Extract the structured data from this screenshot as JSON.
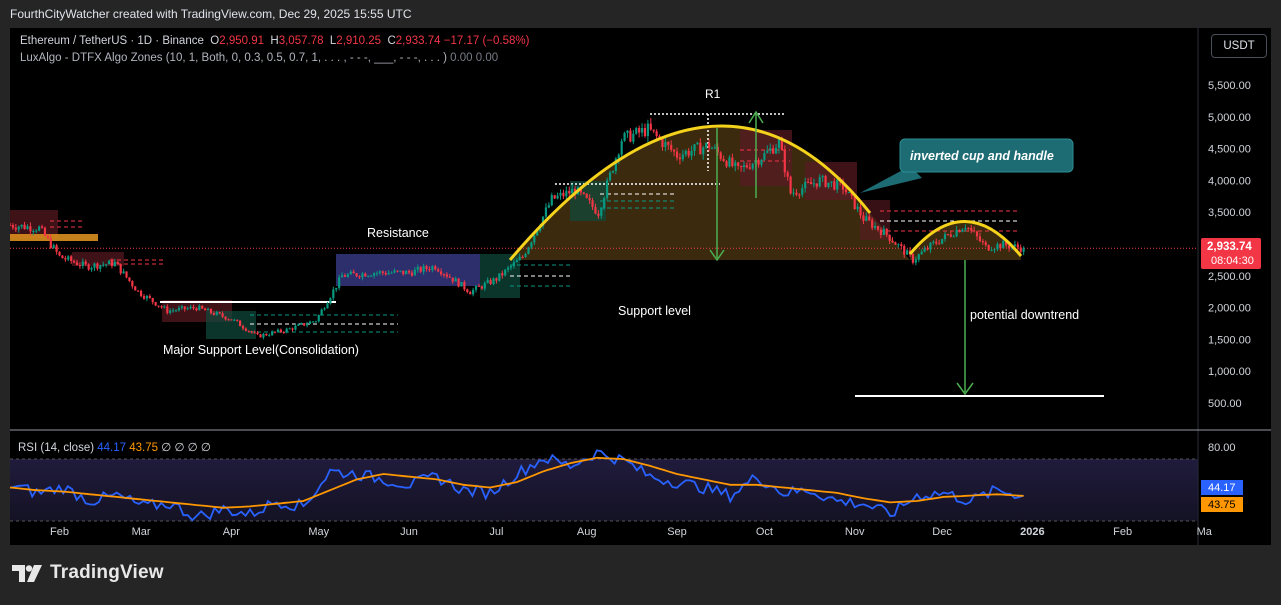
{
  "attribution": "FourthCityWatcher created with TradingView.com, Dec 29, 2025 15:55 UTC",
  "legend": {
    "symbol": "Ethereum / TetherUS · 1D · Binance",
    "o_label": "O",
    "o_value": "2,950.91",
    "h_label": "H",
    "h_value": "3,057.78",
    "l_label": "L",
    "l_value": "2,910.25",
    "c_label": "C",
    "c_value": "2,933.74",
    "change": "−17.17 (−0.58%)",
    "indicator": "LuxAlgo - DTFX Algo Zones (10, 1, Both, 0, 0.3, 0.5, 0.7, 1, . . . , - - -, ___, - - -, . . . )",
    "indicator_values": "0.00  0.00"
  },
  "currency": "USDT",
  "price_badge": {
    "price": "2,933.74",
    "countdown": "08:04:30"
  },
  "rsi_legend": {
    "label": "RSI (14, close)",
    "rsi": "44.17",
    "ma": "43.75",
    "extra": "∅ ∅ ∅ ∅"
  },
  "rsi_badges": {
    "rsi": "44.17",
    "ma": "43.75"
  },
  "logo": {
    "text": "TradingView",
    "icon": "tradingview-logo-icon"
  },
  "colors": {
    "up": "#089981",
    "down": "#f23645",
    "arc": "#f5d21c",
    "rsi_line": "#2962ff",
    "rsi_ma": "#ff9800",
    "callout": "#1d6b73",
    "arrow": "#4caf50",
    "zone_fill": "#7a5a20",
    "resistance_zone": "#3b3f8f"
  },
  "annotations": {
    "r1": "R1",
    "resistance": "Resistance",
    "support": "Support level",
    "major_support": "Major Support Level(Consolidation)",
    "inverted_cup": "inverted cup and handle",
    "downtrend": "potential  downtrend"
  },
  "chart_data": [
    {
      "type": "candlestick",
      "title": "Ethereum / TetherUS · 1D · Binance",
      "x_range": [
        "2025-01-15",
        "2026-03-15"
      ],
      "x_ticks": [
        "Feb",
        "Mar",
        "Apr",
        "May",
        "Jun",
        "Jul",
        "Aug",
        "Sep",
        "Oct",
        "Nov",
        "Dec",
        "2026",
        "Feb",
        "Ma"
      ],
      "y_ticks": [
        "5,500.00",
        "5,000.00",
        "4,500.00",
        "4,000.00",
        "3,500.00",
        "3,000.00",
        "2,500.00",
        "2,000.00",
        "1,500.00",
        "1,000.00",
        "500.00"
      ],
      "ylim": [
        0,
        5800
      ],
      "last_price": 2933.74,
      "approx_close_path": [
        [
          "2025-01-15",
          3300
        ],
        [
          "2025-01-25",
          3250
        ],
        [
          "2025-02-01",
          2800
        ],
        [
          "2025-02-10",
          2650
        ],
        [
          "2025-02-20",
          2700
        ],
        [
          "2025-02-28",
          2250
        ],
        [
          "2025-03-10",
          1950
        ],
        [
          "2025-03-20",
          2000
        ],
        [
          "2025-04-01",
          1820
        ],
        [
          "2025-04-10",
          1550
        ],
        [
          "2025-04-20",
          1650
        ],
        [
          "2025-04-30",
          1800
        ],
        [
          "2025-05-09",
          2500
        ],
        [
          "2025-05-20",
          2550
        ],
        [
          "2025-06-01",
          2550
        ],
        [
          "2025-06-10",
          2650
        ],
        [
          "2025-06-22",
          2250
        ],
        [
          "2025-07-01",
          2450
        ],
        [
          "2025-07-10",
          2800
        ],
        [
          "2025-07-20",
          3700
        ],
        [
          "2025-07-28",
          3850
        ],
        [
          "2025-08-05",
          3500
        ],
        [
          "2025-08-13",
          4650
        ],
        [
          "2025-08-22",
          4800
        ],
        [
          "2025-09-01",
          4400
        ],
        [
          "2025-09-12",
          4550
        ],
        [
          "2025-09-22",
          4150
        ],
        [
          "2025-10-01",
          4400
        ],
        [
          "2025-10-06",
          4600
        ],
        [
          "2025-10-10",
          3800
        ],
        [
          "2025-10-20",
          4000
        ],
        [
          "2025-10-28",
          3900
        ],
        [
          "2025-11-04",
          3400
        ],
        [
          "2025-11-12",
          3150
        ],
        [
          "2025-11-21",
          2750
        ],
        [
          "2025-11-28",
          3000
        ],
        [
          "2025-12-09",
          3300
        ],
        [
          "2025-12-16",
          2950
        ],
        [
          "2025-12-22",
          2990
        ],
        [
          "2025-12-29",
          2933.74
        ]
      ]
    },
    {
      "type": "line",
      "title": "RSI (14, close)",
      "y_ticks": [
        "80.00"
      ],
      "last_rsi": 44.17,
      "last_ma": 43.75,
      "series": [
        {
          "name": "RSI",
          "values": [
            52,
            46,
            50,
            40,
            44,
            36,
            38,
            28,
            34,
            30,
            40,
            36,
            62,
            60,
            56,
            52,
            58,
            48,
            46,
            60,
            72,
            66,
            76,
            70,
            58,
            54,
            50,
            44,
            58,
            46,
            48,
            40,
            38,
            30,
            44,
            46,
            40,
            48,
            44.17
          ]
        },
        {
          "name": "MA",
          "values": [
            50,
            48,
            47,
            45,
            43,
            41,
            39,
            37,
            35,
            36,
            38,
            40,
            48,
            56,
            60,
            58,
            56,
            52,
            50,
            54,
            62,
            68,
            72,
            71,
            66,
            60,
            56,
            52,
            52,
            50,
            48,
            46,
            42,
            39,
            40,
            43,
            44,
            45,
            43.75
          ]
        }
      ]
    }
  ]
}
